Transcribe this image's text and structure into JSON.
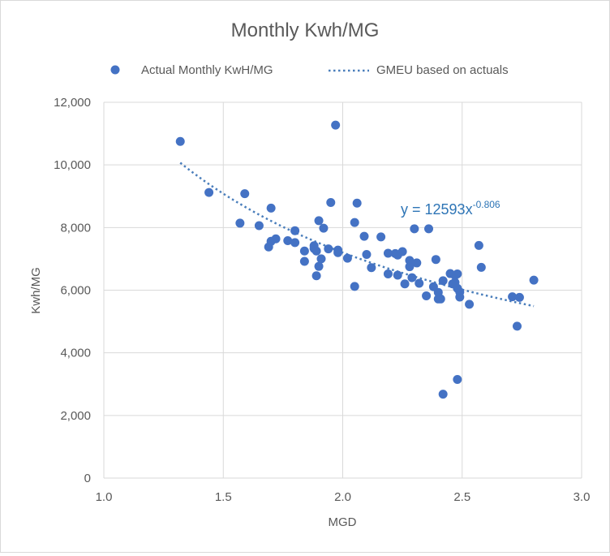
{
  "chart_data": {
    "type": "scatter",
    "title": "Monthly Kwh/MG",
    "xlabel": "MGD",
    "ylabel": "Kwh/MG",
    "xlim": [
      1.0,
      3.0
    ],
    "ylim": [
      0,
      12000
    ],
    "x_ticks": [
      1.0,
      1.5,
      2.0,
      2.5,
      3.0
    ],
    "x_tick_labels": [
      "1.0",
      "1.5",
      "2.0",
      "2.5",
      "3.0"
    ],
    "y_ticks": [
      0,
      2000,
      4000,
      6000,
      8000,
      10000,
      12000
    ],
    "y_tick_labels": [
      "0",
      "2,000",
      "4,000",
      "6,000",
      "8,000",
      "10,000",
      "12,000"
    ],
    "grid": true,
    "legend_position": "top",
    "legend": {
      "points_label": "Actual Monthly KwH/MG",
      "trend_label": "GMEU based on actuals"
    },
    "annotation": {
      "prefix": "y = 12593x",
      "exponent": "-0.806"
    },
    "colors": {
      "points": "#4472c4",
      "trend": "#4a7ebb",
      "annotation": "#2e75b6"
    },
    "trendline": {
      "type": "power",
      "a": 12593,
      "b": -0.806,
      "x_start": 1.32,
      "x_end": 2.8
    },
    "series": [
      {
        "name": "Actual Monthly KwH/MG",
        "points": [
          [
            1.32,
            10750
          ],
          [
            1.44,
            9120
          ],
          [
            1.57,
            8140
          ],
          [
            1.59,
            9080
          ],
          [
            1.65,
            8060
          ],
          [
            1.69,
            7380
          ],
          [
            1.7,
            7560
          ],
          [
            1.7,
            8620
          ],
          [
            1.72,
            7640
          ],
          [
            1.77,
            7580
          ],
          [
            1.8,
            7520
          ],
          [
            1.8,
            7900
          ],
          [
            1.84,
            7250
          ],
          [
            1.84,
            6920
          ],
          [
            1.88,
            7330
          ],
          [
            1.88,
            7420
          ],
          [
            1.89,
            7250
          ],
          [
            1.89,
            6460
          ],
          [
            1.9,
            8220
          ],
          [
            1.9,
            6760
          ],
          [
            1.91,
            7000
          ],
          [
            1.92,
            7980
          ],
          [
            1.94,
            7320
          ],
          [
            1.95,
            8800
          ],
          [
            1.97,
            11270
          ],
          [
            1.98,
            7280
          ],
          [
            1.98,
            7200
          ],
          [
            2.02,
            7020
          ],
          [
            2.05,
            8160
          ],
          [
            2.05,
            6120
          ],
          [
            2.06,
            8780
          ],
          [
            2.09,
            7720
          ],
          [
            2.1,
            7140
          ],
          [
            2.12,
            6720
          ],
          [
            2.16,
            7700
          ],
          [
            2.19,
            7180
          ],
          [
            2.19,
            6520
          ],
          [
            2.22,
            7170
          ],
          [
            2.23,
            7120
          ],
          [
            2.23,
            6480
          ],
          [
            2.25,
            7230
          ],
          [
            2.26,
            6200
          ],
          [
            2.28,
            6750
          ],
          [
            2.28,
            6950
          ],
          [
            2.29,
            6400
          ],
          [
            2.3,
            7960
          ],
          [
            2.31,
            6870
          ],
          [
            2.32,
            6220
          ],
          [
            2.35,
            5820
          ],
          [
            2.36,
            7960
          ],
          [
            2.38,
            6110
          ],
          [
            2.39,
            6980
          ],
          [
            2.4,
            5720
          ],
          [
            2.4,
            5930
          ],
          [
            2.41,
            5720
          ],
          [
            2.42,
            6300
          ],
          [
            2.42,
            2680
          ],
          [
            2.45,
            6530
          ],
          [
            2.46,
            6200
          ],
          [
            2.47,
            6470
          ],
          [
            2.47,
            6250
          ],
          [
            2.48,
            6060
          ],
          [
            2.48,
            6520
          ],
          [
            2.48,
            3150
          ],
          [
            2.49,
            5780
          ],
          [
            2.49,
            5940
          ],
          [
            2.53,
            5550
          ],
          [
            2.57,
            7430
          ],
          [
            2.58,
            6730
          ],
          [
            2.71,
            5790
          ],
          [
            2.73,
            4850
          ],
          [
            2.74,
            5770
          ],
          [
            2.8,
            6320
          ]
        ]
      }
    ]
  }
}
